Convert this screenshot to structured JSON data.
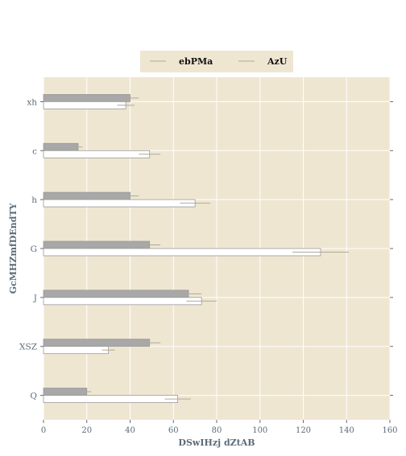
{
  "chart_data": {
    "type": "bar",
    "orientation": "horizontal",
    "title": "",
    "xlabel": "DSwIHzj dZtAB",
    "ylabel": "GcMHZmfDEndTY",
    "categories": [
      "xh",
      "c",
      "h",
      "G",
      "J",
      "XSZ",
      "Q"
    ],
    "xlim": [
      0,
      160
    ],
    "xticks": [
      0,
      20,
      40,
      60,
      80,
      100,
      120,
      140,
      160
    ],
    "grid": true,
    "legend_position": "top-center",
    "series": [
      {
        "name": "ebPMa",
        "color": "#a8a8a8",
        "values": [
          40,
          16,
          40,
          49,
          67,
          49,
          20
        ],
        "errors": [
          4,
          2,
          4,
          5,
          6,
          5,
          2
        ]
      },
      {
        "name": "AzU",
        "color": "#ffffff",
        "values": [
          38,
          49,
          70,
          128,
          73,
          30,
          62
        ],
        "errors": [
          4,
          5,
          7,
          13,
          7,
          3,
          6
        ]
      }
    ]
  },
  "colors": {
    "plot_background": "#efe6d2",
    "legend_background": "#efe6d2",
    "grid": "#ffffff",
    "bar_edge": "#999999",
    "error_bar": "#b0a898"
  }
}
